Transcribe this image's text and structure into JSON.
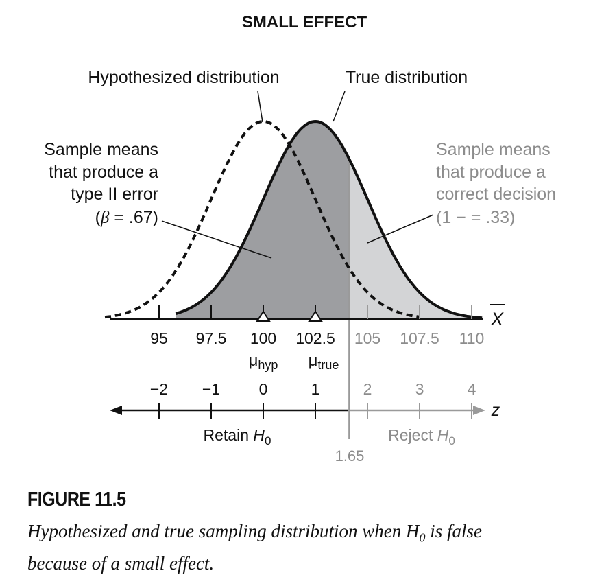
{
  "title": "SMALL EFFECT",
  "labels": {
    "hypothesized": "Hypothesized distribution",
    "true_dist": "True distribution",
    "type2": [
      "Sample means",
      "that produce a",
      "type II error"
    ],
    "type2_paren_open": "(",
    "type2_beta": "β",
    "type2_value": " = .67)",
    "correct": [
      "Sample means",
      "that produce a",
      "correct decision"
    ],
    "correct_value": "(1 −   = .33)",
    "xbar": "X",
    "z": "z",
    "mu_hyp_sym": "μ",
    "mu_hyp_sub": "hyp",
    "mu_true_sym": "μ",
    "mu_true_sub": "true",
    "retain": "Retain ",
    "reject": "Reject ",
    "h": "H",
    "h_sub": "0",
    "critical": "1.65"
  },
  "colors": {
    "dark_fill": "#9d9ea1",
    "light_fill": "#d3d4d6",
    "black": "#111111",
    "gray_text": "#8c8c8c"
  },
  "chart_data": {
    "type": "area",
    "x_axis": {
      "label": "X̄",
      "ticks": [
        95,
        97.5,
        100,
        102.5,
        105,
        107.5,
        110
      ],
      "tick_labels": [
        "95",
        "97.5",
        "100",
        "102.5",
        "105",
        "107.5",
        "110"
      ]
    },
    "z_axis": {
      "label": "z",
      "ticks": [
        -2,
        -1,
        0,
        1,
        2,
        3,
        4
      ],
      "tick_labels": [
        "−2",
        "−1",
        "0",
        "1",
        "2",
        "3",
        "4"
      ]
    },
    "hypothesized_mean": 100,
    "true_mean": 102.5,
    "sigma_m": 2.5,
    "critical_z": 1.65,
    "beta": 0.67,
    "power": 0.33,
    "series": [
      {
        "name": "Hypothesized distribution",
        "mean": 100,
        "sd": 2.5,
        "style": "dashed"
      },
      {
        "name": "True distribution",
        "mean": 102.5,
        "sd": 2.5,
        "style": "solid"
      }
    ]
  },
  "caption": {
    "figure_label": "FIGURE 11.5",
    "line1_a": "Hypothesized and true sampling distribution when ",
    "line1_h": "H",
    "line1_sub": "0",
    "line1_b": " is false",
    "line2": "because of a small effect."
  }
}
